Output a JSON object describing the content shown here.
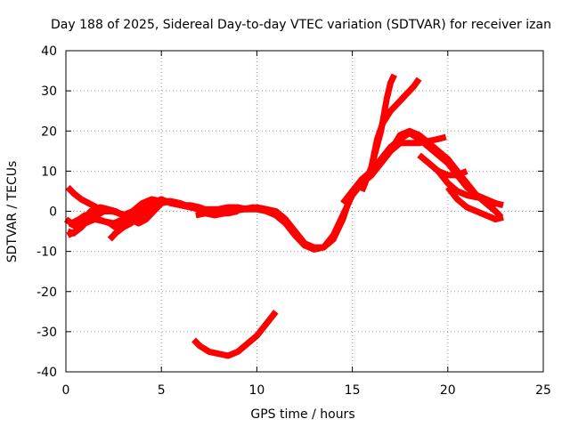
{
  "chart_data": {
    "type": "line",
    "title": "Day 188 of 2025, Sidereal Day-to-day VTEC variation (SDTVAR) for receiver izan",
    "xlabel": "GPS time / hours",
    "ylabel": "SDTVAR / TECUs",
    "xlim": [
      0,
      25
    ],
    "ylim": [
      -40,
      40
    ],
    "xticks": [
      0,
      5,
      10,
      15,
      20,
      25
    ],
    "yticks": [
      -40,
      -30,
      -20,
      -10,
      0,
      10,
      20,
      30,
      40
    ],
    "xtick_labels": [
      "0",
      "5",
      "10",
      "15",
      "20",
      "25"
    ],
    "ytick_labels": [
      "-40",
      "-30",
      "-20",
      "-10",
      "0",
      "10",
      "20",
      "30",
      "40"
    ],
    "grid": true,
    "legend": "none",
    "color": "#ff0000",
    "series": [
      {
        "name": "main-arc-a",
        "x": [
          0.1,
          0.4,
          0.8,
          1.2,
          1.6,
          2.0,
          2.5,
          3.0,
          3.5,
          4.0,
          4.5,
          5.0,
          5.5,
          6.0,
          6.5,
          7.0,
          7.5,
          8.0,
          8.5,
          9.0,
          9.5,
          10.0,
          10.5,
          11.0,
          11.5,
          12.0,
          12.5,
          13.0,
          13.5,
          14.0,
          14.5,
          15.0,
          15.5,
          16.0,
          16.5,
          17.0,
          17.5,
          18.0,
          18.5,
          19.0,
          19.5,
          20.0,
          20.5,
          21.0,
          21.5,
          22.0,
          22.5
        ],
        "y": [
          -5,
          -5.5,
          -4,
          -2,
          -1,
          0,
          0,
          -1,
          0,
          2,
          3,
          2.5,
          2.5,
          2,
          1,
          0.5,
          0,
          0,
          0.5,
          0.5,
          0.5,
          1,
          0.5,
          0,
          -2,
          -5,
          -8,
          -9,
          -9,
          -7,
          -2,
          5,
          8,
          10,
          13,
          16,
          18,
          19.5,
          18,
          16,
          14,
          12,
          9,
          6,
          4,
          3,
          1
        ]
      },
      {
        "name": "main-arc-b",
        "x": [
          0.2,
          0.6,
          1.0,
          1.5,
          2.0,
          2.5,
          3.0,
          3.5,
          4.0,
          4.5,
          5.0,
          5.5,
          6.0,
          6.5,
          7.0,
          7.5,
          8.0,
          8.5,
          9.0,
          9.5,
          10.0,
          10.5,
          11.0,
          11.5,
          12.0,
          12.5,
          13.0,
          13.5,
          14.0,
          14.5,
          15.0,
          15.5,
          16.0,
          16.5,
          17.0,
          17.5,
          18.0,
          18.5,
          19.0,
          19.5,
          20.0,
          20.5,
          21.0,
          21.5,
          22.0,
          22.5,
          22.8
        ],
        "y": [
          -3,
          -4,
          -3,
          -2,
          -2.5,
          -3,
          -2,
          -1,
          1,
          2,
          2,
          2.5,
          1.5,
          1,
          0.5,
          0.5,
          0.5,
          1,
          1,
          0.5,
          0.5,
          0,
          -1,
          -3,
          -6,
          -8.5,
          -9.5,
          -9,
          -6,
          -1,
          4,
          7,
          9,
          12,
          15,
          19,
          20,
          19,
          17,
          15,
          13,
          10,
          7,
          4,
          2,
          0,
          -1.5
        ]
      },
      {
        "name": "early-wiggle-1",
        "x": [
          0.0,
          0.3,
          0.7,
          1.0,
          1.3,
          1.7,
          2.0,
          2.3,
          2.6,
          3.0,
          3.4,
          3.8,
          4.2,
          4.6
        ],
        "y": [
          -2,
          -3,
          -2,
          -1,
          -1.5,
          -2,
          -2.5,
          -3,
          -4,
          -3,
          -2,
          -1,
          0,
          1.5
        ]
      },
      {
        "name": "early-wiggle-2",
        "x": [
          0.1,
          0.5,
          0.9,
          1.3,
          1.8,
          2.2,
          2.6,
          3.0,
          3.4,
          3.8,
          4.2,
          4.6,
          5.0
        ],
        "y": [
          -6,
          -5,
          -2,
          0,
          1,
          0.5,
          0,
          -1,
          -2,
          -3,
          -2,
          0,
          2
        ]
      },
      {
        "name": "early-start-high",
        "x": [
          0.1,
          0.4,
          0.8,
          1.2,
          1.6,
          2.0,
          2.4,
          2.8,
          3.2
        ],
        "y": [
          6,
          4.5,
          3,
          2,
          1,
          0.5,
          0,
          -0.5,
          -1
        ]
      },
      {
        "name": "early-short-a",
        "x": [
          2.3,
          2.6,
          3.0,
          3.4,
          3.8,
          4.2
        ],
        "y": [
          -7,
          -5.5,
          -4,
          -3,
          -1.5,
          0
        ]
      },
      {
        "name": "mid-plateau",
        "x": [
          4.5,
          5.0,
          5.5,
          6.0,
          6.5,
          7.0,
          7.5,
          8.0,
          8.5,
          9.0
        ],
        "y": [
          2,
          3,
          2,
          1.5,
          1.5,
          1,
          0,
          -0.5,
          -0.5,
          0
        ]
      },
      {
        "name": "mid-plateau-2",
        "x": [
          6.8,
          7.3,
          7.8,
          8.3,
          8.8,
          9.3,
          9.8,
          10.3,
          10.8
        ],
        "y": [
          -1,
          -0.5,
          -1,
          -0.5,
          0,
          0.5,
          1,
          0.5,
          -0.5
        ]
      },
      {
        "name": "late-spike-1",
        "x": [
          15.5,
          16.0,
          16.5,
          16.8,
          17.0,
          17.2
        ],
        "y": [
          5,
          11,
          20,
          28,
          32,
          34
        ]
      },
      {
        "name": "late-spike-2",
        "x": [
          16.0,
          16.3,
          16.6,
          17.0,
          17.4,
          17.8,
          18.2,
          18.5
        ],
        "y": [
          11,
          18,
          22,
          25,
          27,
          29,
          31,
          33
        ]
      },
      {
        "name": "late-arc-c",
        "x": [
          14.5,
          15.0,
          15.5,
          16.0,
          16.5,
          17.0,
          17.5,
          18.0,
          18.5,
          19.0,
          19.5,
          19.9
        ],
        "y": [
          2,
          5,
          7,
          9,
          12,
          15,
          17,
          17,
          17,
          17.5,
          18,
          18.5
        ]
      },
      {
        "name": "late-tail-1",
        "x": [
          18.5,
          19.0,
          19.5,
          20.0,
          20.5,
          21.0
        ],
        "y": [
          14,
          12,
          10,
          9,
          9,
          10
        ]
      },
      {
        "name": "late-tail-2",
        "x": [
          20.0,
          20.5,
          21.0,
          21.5,
          22.0,
          22.5,
          22.9
        ],
        "y": [
          6,
          3,
          1,
          0,
          -1,
          -2,
          -1.5
        ]
      },
      {
        "name": "late-tail-3",
        "x": [
          21.0,
          21.5,
          22.0,
          22.5,
          22.9
        ],
        "y": [
          4,
          3.5,
          3,
          2,
          1.5
        ]
      },
      {
        "name": "late-tail-4",
        "x": [
          19.5,
          20.0,
          20.5,
          21.0,
          21.5
        ],
        "y": [
          10,
          7,
          5,
          4,
          3.5
        ]
      },
      {
        "name": "low-arc",
        "x": [
          6.7,
          7.0,
          7.5,
          8.0,
          8.5,
          9.0,
          9.5,
          10.0,
          10.5,
          11.0
        ],
        "y": [
          -32,
          -33.5,
          -35,
          -35.5,
          -36,
          -35,
          -33,
          -31,
          -28,
          -25
        ]
      }
    ]
  }
}
